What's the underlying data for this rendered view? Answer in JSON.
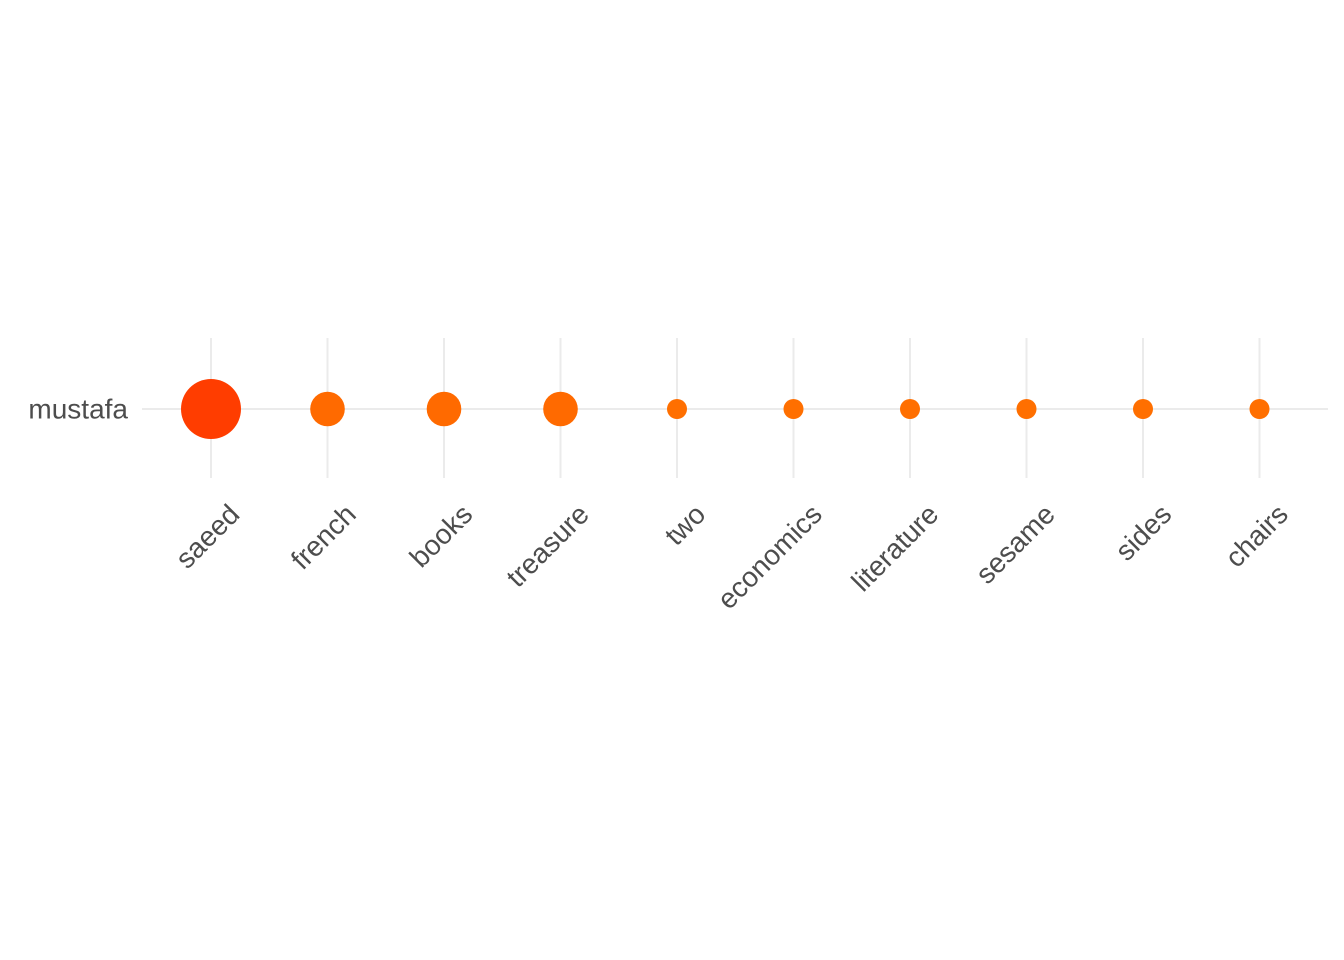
{
  "chart_data": {
    "type": "scatter",
    "title": "",
    "xlabel": "",
    "ylabel": "",
    "grid": true,
    "legend": "none",
    "y_categories": [
      "mustafa"
    ],
    "x_categories": [
      "saeed",
      "french",
      "books",
      "treasure",
      "two",
      "economics",
      "literature",
      "sesame",
      "sides",
      "chairs"
    ],
    "points": [
      {
        "x": "saeed",
        "y": "mustafa",
        "size": 6,
        "color": "#ff3d00"
      },
      {
        "x": "french",
        "y": "mustafa",
        "size": 3,
        "color": "#ff6a00"
      },
      {
        "x": "books",
        "y": "mustafa",
        "size": 3,
        "color": "#ff6a00"
      },
      {
        "x": "treasure",
        "y": "mustafa",
        "size": 3,
        "color": "#ff6a00"
      },
      {
        "x": "two",
        "y": "mustafa",
        "size": 2,
        "color": "#ff6f00"
      },
      {
        "x": "economics",
        "y": "mustafa",
        "size": 2,
        "color": "#ff6f00"
      },
      {
        "x": "literature",
        "y": "mustafa",
        "size": 2,
        "color": "#ff6f00"
      },
      {
        "x": "sesame",
        "y": "mustafa",
        "size": 2,
        "color": "#ff6f00"
      },
      {
        "x": "sides",
        "y": "mustafa",
        "size": 2,
        "color": "#ff6f00"
      },
      {
        "x": "chairs",
        "y": "mustafa",
        "size": 2,
        "color": "#ff6f00"
      }
    ]
  }
}
